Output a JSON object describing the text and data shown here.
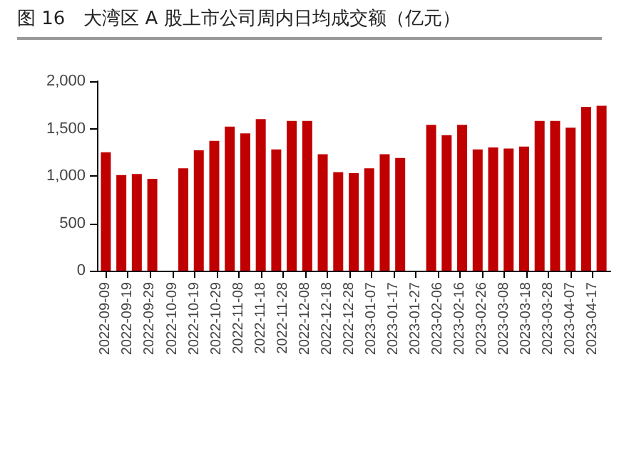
{
  "chart_data": {
    "type": "bar",
    "title": "图 16　大湾区 A 股上市公司周内日均成交额（亿元）",
    "x": [
      "2022-09-09",
      "2022-09-16",
      "2022-09-23",
      "2022-09-30",
      "2022-10-07",
      "2022-10-14",
      "2022-10-21",
      "2022-10-28",
      "2022-11-04",
      "2022-11-11",
      "2022-11-18",
      "2022-11-25",
      "2022-12-02",
      "2022-12-09",
      "2022-12-16",
      "2022-12-23",
      "2022-12-30",
      "2023-01-06",
      "2023-01-13",
      "2023-01-20",
      "2023-01-27",
      "2023-02-03",
      "2023-02-10",
      "2023-02-17",
      "2023-02-24",
      "2023-03-03",
      "2023-03-10",
      "2023-03-17",
      "2023-03-24",
      "2023-03-31",
      "2023-04-07",
      "2023-04-14",
      "2023-04-21"
    ],
    "series": [
      {
        "color": "#c00000",
        "values": [
          1250,
          1010,
          1020,
          970,
          null,
          1080,
          1270,
          1370,
          1520,
          1450,
          1600,
          1280,
          1580,
          1580,
          1230,
          1040,
          1030,
          1080,
          1230,
          1190,
          null,
          1540,
          1430,
          1540,
          1280,
          1300,
          1290,
          1310,
          1580,
          1580,
          1510,
          1730,
          1740
        ]
      }
    ],
    "xlim": [
      "2022-09-05",
      "2023-04-25"
    ],
    "xticks": [
      "2022-09-09",
      "2022-09-19",
      "2022-09-29",
      "2022-10-09",
      "2022-10-19",
      "2022-10-29",
      "2022-11-08",
      "2022-11-18",
      "2022-11-28",
      "2022-12-08",
      "2022-12-18",
      "2022-12-28",
      "2023-01-07",
      "2023-01-17",
      "2023-01-27",
      "2023-02-06",
      "2023-02-16",
      "2023-02-26",
      "2023-03-08",
      "2023-03-18",
      "2023-03-28",
      "2023-04-07",
      "2023-04-17"
    ],
    "ylim": [
      0,
      2000
    ],
    "yticks": [
      0,
      500,
      {
        "value": 1000,
        "label": "1,000"
      },
      {
        "value": 1500,
        "label": "1,500"
      },
      {
        "value": 2000,
        "label": "2,000"
      }
    ],
    "grid": false
  }
}
